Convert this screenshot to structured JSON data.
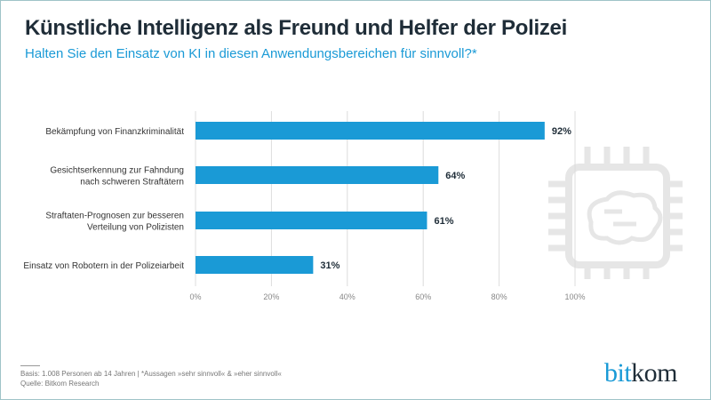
{
  "header": {
    "title": "Künstliche Intelligenz als Freund und Helfer der Polizei",
    "subtitle": "Halten Sie den Einsatz von KI in diesen Anwendungsbereichen für sinnvoll?*"
  },
  "chart_data": {
    "type": "bar",
    "orientation": "horizontal",
    "categories": [
      [
        "Bekämpfung von Finanzkriminalität"
      ],
      [
        "Gesichtserkennung zur Fahndung",
        "nach schweren Straftätern"
      ],
      [
        "Straftaten-Prognosen zur besseren",
        "Verteilung von Polizisten"
      ],
      [
        "Einsatz von Robotern in der Polizeiarbeit"
      ]
    ],
    "values": [
      92,
      64,
      61,
      31
    ],
    "data_labels": [
      "92%",
      "64%",
      "61%",
      "31%"
    ],
    "xlim": [
      0,
      100
    ],
    "ticks": [
      "0%",
      "20%",
      "40%",
      "60%",
      "80%",
      "100%"
    ],
    "grid": true,
    "bar_color": "#1a9ad6"
  },
  "footer": {
    "basis": "Basis: 1.008 Personen ab 14 Jahren | *Aussagen »sehr sinnvoll« & »eher sinnvoll«",
    "source": "Quelle: Bitkom Research"
  },
  "logo": {
    "part1": "bit",
    "part2": "kom"
  },
  "watermark_icon": "chip-brain-icon"
}
